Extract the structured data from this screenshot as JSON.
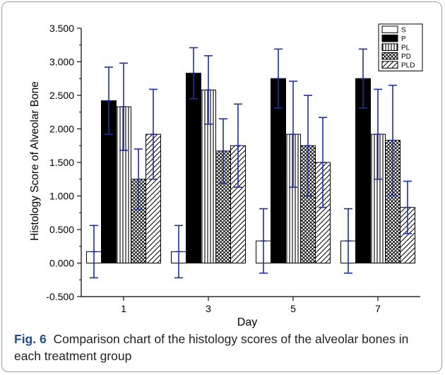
{
  "chart_data": {
    "type": "bar",
    "categories": [
      "1",
      "3",
      "5",
      "7"
    ],
    "xlabel": "Day",
    "ylabel": "Histology Score of Alveolar Bone",
    "ylim": [
      -0.5,
      3.5
    ],
    "yticks": [
      -0.5,
      0.0,
      0.5,
      1.0,
      1.5,
      2.0,
      2.5,
      3.0,
      3.5
    ],
    "ytick_labels": [
      "-0.500",
      "0.000",
      "0.500",
      "1.000",
      "1.500",
      "2.000",
      "2.500",
      "3.000",
      "3.500"
    ],
    "legend_position": "top-right",
    "series": [
      {
        "name": "S",
        "pattern": "white",
        "values": [
          0.17,
          0.17,
          0.33,
          0.33
        ],
        "errors": [
          0.39,
          0.39,
          0.48,
          0.48
        ]
      },
      {
        "name": "P",
        "pattern": "solid",
        "values": [
          2.42,
          2.83,
          2.75,
          2.75
        ],
        "errors": [
          0.5,
          0.38,
          0.44,
          0.44
        ]
      },
      {
        "name": "PL",
        "pattern": "vertical",
        "values": [
          2.33,
          2.58,
          1.92,
          1.92
        ],
        "errors": [
          0.65,
          0.51,
          0.79,
          0.67
        ]
      },
      {
        "name": "PD",
        "pattern": "crosshatch",
        "values": [
          1.25,
          1.67,
          1.75,
          1.83
        ],
        "errors": [
          0.45,
          0.48,
          0.75,
          0.82
        ]
      },
      {
        "name": "PLD",
        "pattern": "diagonal",
        "values": [
          1.92,
          1.75,
          1.5,
          0.83
        ],
        "errors": [
          0.67,
          0.62,
          0.67,
          0.39
        ]
      }
    ],
    "colors": {
      "bar_edge": "#000000",
      "error_bar": "#1f2f9e",
      "solid_fill": "#000000"
    }
  },
  "caption": {
    "label": "Fig. 6",
    "text": "Comparison chart of the histology scores of the alveolar bones in each treatment group"
  }
}
